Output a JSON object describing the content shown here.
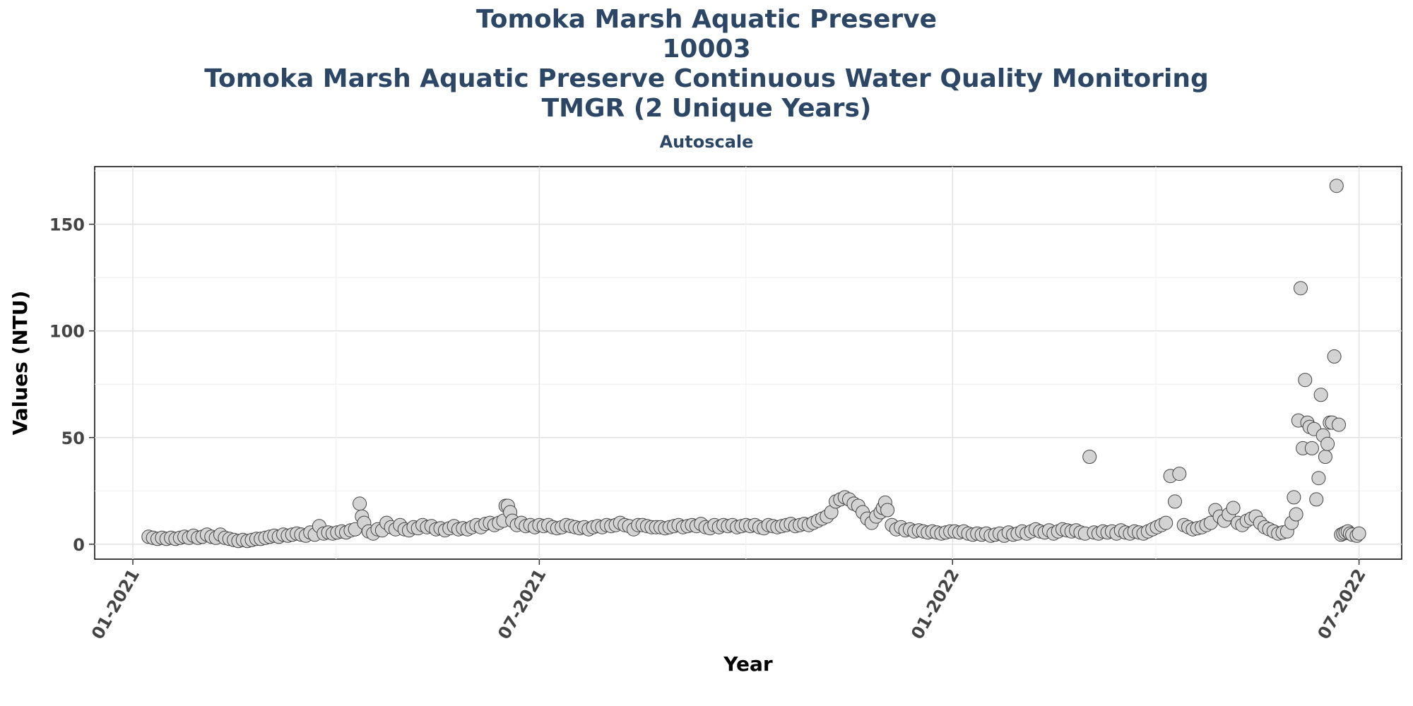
{
  "header": {
    "title_lines": [
      "Tomoka Marsh Aquatic Preserve",
      "10003",
      "Tomoka Marsh Aquatic Preserve Continuous Water Quality Monitoring",
      "TMGR (2 Unique Years)"
    ],
    "subtitle": "Autoscale"
  },
  "chart_data": {
    "type": "scatter",
    "title": "Tomoka Marsh Aquatic Preserve",
    "subtitle": "Autoscale",
    "xlabel": "Year",
    "ylabel": "Values (NTU)",
    "xlim": [
      "2020-12-15",
      "2022-07-20"
    ],
    "ylim": [
      -7,
      177
    ],
    "x_ticks": [
      {
        "date": "2021-01-01",
        "label": "01-2021"
      },
      {
        "date": "2021-07-01",
        "label": "07-2021"
      },
      {
        "date": "2022-01-01",
        "label": "01-2022"
      },
      {
        "date": "2022-07-01",
        "label": "07-2022"
      }
    ],
    "y_ticks": [
      0,
      50,
      100,
      150
    ],
    "grid": true,
    "marker": {
      "fill": "#d3d3d3",
      "stroke": "#444444"
    },
    "points": [
      [
        "2021-01-08",
        3.5
      ],
      [
        "2021-01-10",
        3
      ],
      [
        "2021-01-12",
        2.5
      ],
      [
        "2021-01-14",
        3
      ],
      [
        "2021-01-16",
        2.5
      ],
      [
        "2021-01-18",
        3
      ],
      [
        "2021-01-20",
        2.5
      ],
      [
        "2021-01-22",
        3
      ],
      [
        "2021-01-24",
        3.5
      ],
      [
        "2021-01-26",
        3
      ],
      [
        "2021-01-28",
        4
      ],
      [
        "2021-01-30",
        3
      ],
      [
        "2021-02-01",
        3.5
      ],
      [
        "2021-02-03",
        4.5
      ],
      [
        "2021-02-05",
        3.5
      ],
      [
        "2021-02-07",
        3
      ],
      [
        "2021-02-09",
        4.5
      ],
      [
        "2021-02-11",
        3
      ],
      [
        "2021-02-13",
        2.5
      ],
      [
        "2021-02-15",
        2
      ],
      [
        "2021-02-17",
        1.5
      ],
      [
        "2021-02-19",
        2
      ],
      [
        "2021-02-21",
        1.5
      ],
      [
        "2021-02-23",
        2
      ],
      [
        "2021-02-25",
        2.5
      ],
      [
        "2021-02-27",
        2.5
      ],
      [
        "2021-03-01",
        3
      ],
      [
        "2021-03-03",
        3.5
      ],
      [
        "2021-03-05",
        4
      ],
      [
        "2021-03-07",
        3.5
      ],
      [
        "2021-03-09",
        4.5
      ],
      [
        "2021-03-11",
        4
      ],
      [
        "2021-03-13",
        4.5
      ],
      [
        "2021-03-15",
        5
      ],
      [
        "2021-03-17",
        4.5
      ],
      [
        "2021-03-19",
        4
      ],
      [
        "2021-03-21",
        5.5
      ],
      [
        "2021-03-23",
        4.5
      ],
      [
        "2021-03-25",
        8.5
      ],
      [
        "2021-03-27",
        5
      ],
      [
        "2021-03-29",
        5.5
      ],
      [
        "2021-03-31",
        5
      ],
      [
        "2021-04-02",
        5.5
      ],
      [
        "2021-04-04",
        6
      ],
      [
        "2021-04-06",
        5.5
      ],
      [
        "2021-04-08",
        6.5
      ],
      [
        "2021-04-10",
        7
      ],
      [
        "2021-04-12",
        19
      ],
      [
        "2021-04-13",
        13
      ],
      [
        "2021-04-14",
        10
      ],
      [
        "2021-04-16",
        6
      ],
      [
        "2021-04-18",
        5
      ],
      [
        "2021-04-20",
        7
      ],
      [
        "2021-04-22",
        6.5
      ],
      [
        "2021-04-24",
        10
      ],
      [
        "2021-04-26",
        8
      ],
      [
        "2021-04-28",
        7
      ],
      [
        "2021-04-30",
        9
      ],
      [
        "2021-05-02",
        7
      ],
      [
        "2021-05-04",
        6.5
      ],
      [
        "2021-05-06",
        8
      ],
      [
        "2021-05-08",
        7.5
      ],
      [
        "2021-05-10",
        9
      ],
      [
        "2021-05-12",
        8
      ],
      [
        "2021-05-14",
        8.5
      ],
      [
        "2021-05-16",
        7
      ],
      [
        "2021-05-18",
        7.5
      ],
      [
        "2021-05-20",
        6.5
      ],
      [
        "2021-05-22",
        7.5
      ],
      [
        "2021-05-24",
        8.5
      ],
      [
        "2021-05-26",
        7
      ],
      [
        "2021-05-28",
        7.5
      ],
      [
        "2021-05-30",
        7
      ],
      [
        "2021-06-01",
        8
      ],
      [
        "2021-06-03",
        9
      ],
      [
        "2021-06-05",
        8
      ],
      [
        "2021-06-07",
        9.5
      ],
      [
        "2021-06-09",
        10
      ],
      [
        "2021-06-11",
        9
      ],
      [
        "2021-06-13",
        10
      ],
      [
        "2021-06-15",
        11
      ],
      [
        "2021-06-16",
        18
      ],
      [
        "2021-06-17",
        18
      ],
      [
        "2021-06-18",
        15
      ],
      [
        "2021-06-19",
        11
      ],
      [
        "2021-06-21",
        9
      ],
      [
        "2021-06-23",
        10
      ],
      [
        "2021-06-25",
        8.5
      ],
      [
        "2021-06-27",
        9
      ],
      [
        "2021-06-29",
        8
      ],
      [
        "2021-07-01",
        9
      ],
      [
        "2021-07-03",
        8.5
      ],
      [
        "2021-07-05",
        9
      ],
      [
        "2021-07-07",
        8
      ],
      [
        "2021-07-09",
        7.5
      ],
      [
        "2021-07-11",
        8
      ],
      [
        "2021-07-13",
        9
      ],
      [
        "2021-07-15",
        8.5
      ],
      [
        "2021-07-17",
        8
      ],
      [
        "2021-07-19",
        7.5
      ],
      [
        "2021-07-21",
        8
      ],
      [
        "2021-07-23",
        7
      ],
      [
        "2021-07-25",
        8
      ],
      [
        "2021-07-27",
        8.5
      ],
      [
        "2021-07-29",
        8
      ],
      [
        "2021-07-31",
        9
      ],
      [
        "2021-08-02",
        8.5
      ],
      [
        "2021-08-04",
        9
      ],
      [
        "2021-08-06",
        10
      ],
      [
        "2021-08-08",
        9
      ],
      [
        "2021-08-10",
        8.5
      ],
      [
        "2021-08-12",
        7
      ],
      [
        "2021-08-14",
        9
      ],
      [
        "2021-08-16",
        9
      ],
      [
        "2021-08-18",
        8.5
      ],
      [
        "2021-08-20",
        8
      ],
      [
        "2021-08-22",
        8
      ],
      [
        "2021-08-24",
        8
      ],
      [
        "2021-08-26",
        7.5
      ],
      [
        "2021-08-28",
        8
      ],
      [
        "2021-08-30",
        8.5
      ],
      [
        "2021-09-01",
        9
      ],
      [
        "2021-09-03",
        8
      ],
      [
        "2021-09-05",
        8.5
      ],
      [
        "2021-09-07",
        9
      ],
      [
        "2021-09-09",
        8.5
      ],
      [
        "2021-09-11",
        9.5
      ],
      [
        "2021-09-13",
        8
      ],
      [
        "2021-09-15",
        7.5
      ],
      [
        "2021-09-17",
        9
      ],
      [
        "2021-09-19",
        8
      ],
      [
        "2021-09-21",
        9
      ],
      [
        "2021-09-23",
        8.5
      ],
      [
        "2021-09-25",
        9
      ],
      [
        "2021-09-27",
        8
      ],
      [
        "2021-09-29",
        8.5
      ],
      [
        "2021-10-01",
        9
      ],
      [
        "2021-10-03",
        8.5
      ],
      [
        "2021-10-05",
        9
      ],
      [
        "2021-10-07",
        8
      ],
      [
        "2021-10-09",
        7.5
      ],
      [
        "2021-10-11",
        9
      ],
      [
        "2021-10-13",
        8.5
      ],
      [
        "2021-10-15",
        8
      ],
      [
        "2021-10-17",
        8.5
      ],
      [
        "2021-10-19",
        9
      ],
      [
        "2021-10-21",
        9.5
      ],
      [
        "2021-10-23",
        8.5
      ],
      [
        "2021-10-25",
        9
      ],
      [
        "2021-10-27",
        9.5
      ],
      [
        "2021-10-29",
        9
      ],
      [
        "2021-10-31",
        10
      ],
      [
        "2021-11-02",
        11
      ],
      [
        "2021-11-04",
        12
      ],
      [
        "2021-11-06",
        13
      ],
      [
        "2021-11-08",
        15
      ],
      [
        "2021-11-10",
        20
      ],
      [
        "2021-11-12",
        21
      ],
      [
        "2021-11-14",
        22
      ],
      [
        "2021-11-16",
        21
      ],
      [
        "2021-11-18",
        19
      ],
      [
        "2021-11-20",
        18
      ],
      [
        "2021-11-22",
        15
      ],
      [
        "2021-11-24",
        12
      ],
      [
        "2021-11-26",
        10
      ],
      [
        "2021-11-28",
        13
      ],
      [
        "2021-11-30",
        15
      ],
      [
        "2021-12-01",
        17
      ],
      [
        "2021-12-02",
        19.5
      ],
      [
        "2021-12-03",
        16
      ],
      [
        "2021-12-05",
        9
      ],
      [
        "2021-12-07",
        7
      ],
      [
        "2021-12-09",
        8
      ],
      [
        "2021-12-11",
        6.5
      ],
      [
        "2021-12-13",
        7
      ],
      [
        "2021-12-15",
        6
      ],
      [
        "2021-12-17",
        6.5
      ],
      [
        "2021-12-19",
        6
      ],
      [
        "2021-12-21",
        5.5
      ],
      [
        "2021-12-23",
        6
      ],
      [
        "2021-12-25",
        5.5
      ],
      [
        "2021-12-27",
        5
      ],
      [
        "2021-12-29",
        5.5
      ],
      [
        "2021-12-31",
        6
      ],
      [
        "2022-01-02",
        6
      ],
      [
        "2022-01-04",
        5.5
      ],
      [
        "2022-01-06",
        6
      ],
      [
        "2022-01-08",
        5
      ],
      [
        "2022-01-10",
        4.5
      ],
      [
        "2022-01-12",
        5
      ],
      [
        "2022-01-14",
        4.5
      ],
      [
        "2022-01-16",
        5
      ],
      [
        "2022-01-18",
        4
      ],
      [
        "2022-01-20",
        4.5
      ],
      [
        "2022-01-22",
        5
      ],
      [
        "2022-01-24",
        4
      ],
      [
        "2022-01-26",
        5.5
      ],
      [
        "2022-01-28",
        4.5
      ],
      [
        "2022-01-30",
        5
      ],
      [
        "2022-02-01",
        6
      ],
      [
        "2022-02-03",
        5
      ],
      [
        "2022-02-05",
        6
      ],
      [
        "2022-02-07",
        7
      ],
      [
        "2022-02-09",
        6
      ],
      [
        "2022-02-11",
        5.5
      ],
      [
        "2022-02-13",
        6.5
      ],
      [
        "2022-02-15",
        5
      ],
      [
        "2022-02-17",
        6
      ],
      [
        "2022-02-19",
        7
      ],
      [
        "2022-02-21",
        6.5
      ],
      [
        "2022-02-23",
        6
      ],
      [
        "2022-02-25",
        6.5
      ],
      [
        "2022-02-27",
        5.5
      ],
      [
        "2022-03-01",
        5
      ],
      [
        "2022-03-03",
        41
      ],
      [
        "2022-03-05",
        5.5
      ],
      [
        "2022-03-07",
        5
      ],
      [
        "2022-03-09",
        6
      ],
      [
        "2022-03-11",
        5.5
      ],
      [
        "2022-03-13",
        6
      ],
      [
        "2022-03-15",
        5
      ],
      [
        "2022-03-17",
        6.5
      ],
      [
        "2022-03-19",
        5.5
      ],
      [
        "2022-03-21",
        5
      ],
      [
        "2022-03-23",
        6
      ],
      [
        "2022-03-25",
        5.5
      ],
      [
        "2022-03-27",
        5
      ],
      [
        "2022-03-29",
        6
      ],
      [
        "2022-03-31",
        7
      ],
      [
        "2022-04-02",
        8
      ],
      [
        "2022-04-04",
        9
      ],
      [
        "2022-04-06",
        10
      ],
      [
        "2022-04-08",
        32
      ],
      [
        "2022-04-10",
        20
      ],
      [
        "2022-04-12",
        33
      ],
      [
        "2022-04-14",
        9
      ],
      [
        "2022-04-16",
        8
      ],
      [
        "2022-04-18",
        7
      ],
      [
        "2022-04-20",
        7.5
      ],
      [
        "2022-04-22",
        8
      ],
      [
        "2022-04-24",
        9
      ],
      [
        "2022-04-26",
        10
      ],
      [
        "2022-04-28",
        16
      ],
      [
        "2022-04-30",
        13
      ],
      [
        "2022-05-02",
        11
      ],
      [
        "2022-05-04",
        14
      ],
      [
        "2022-05-06",
        17
      ],
      [
        "2022-05-08",
        10
      ],
      [
        "2022-05-10",
        9
      ],
      [
        "2022-05-12",
        11
      ],
      [
        "2022-05-14",
        12
      ],
      [
        "2022-05-16",
        13
      ],
      [
        "2022-05-18",
        10
      ],
      [
        "2022-05-20",
        8
      ],
      [
        "2022-05-22",
        7
      ],
      [
        "2022-05-24",
        6
      ],
      [
        "2022-05-26",
        5
      ],
      [
        "2022-05-28",
        5.5
      ],
      [
        "2022-05-30",
        6
      ],
      [
        "2022-06-01",
        10
      ],
      [
        "2022-06-02",
        22
      ],
      [
        "2022-06-03",
        14
      ],
      [
        "2022-06-04",
        58
      ],
      [
        "2022-06-05",
        120
      ],
      [
        "2022-06-06",
        45
      ],
      [
        "2022-06-07",
        77
      ],
      [
        "2022-06-08",
        57
      ],
      [
        "2022-06-09",
        55
      ],
      [
        "2022-06-10",
        45
      ],
      [
        "2022-06-11",
        54
      ],
      [
        "2022-06-12",
        21
      ],
      [
        "2022-06-13",
        31
      ],
      [
        "2022-06-14",
        70
      ],
      [
        "2022-06-15",
        51
      ],
      [
        "2022-06-16",
        41
      ],
      [
        "2022-06-17",
        47
      ],
      [
        "2022-06-18",
        57
      ],
      [
        "2022-06-19",
        57
      ],
      [
        "2022-06-20",
        88
      ],
      [
        "2022-06-21",
        168
      ],
      [
        "2022-06-22",
        56
      ],
      [
        "2022-06-23",
        4.5
      ],
      [
        "2022-06-24",
        5
      ],
      [
        "2022-06-25",
        5.5
      ],
      [
        "2022-06-26",
        6
      ],
      [
        "2022-06-27",
        5
      ],
      [
        "2022-06-28",
        4.5
      ],
      [
        "2022-06-30",
        4
      ],
      [
        "2022-07-01",
        5
      ]
    ]
  }
}
